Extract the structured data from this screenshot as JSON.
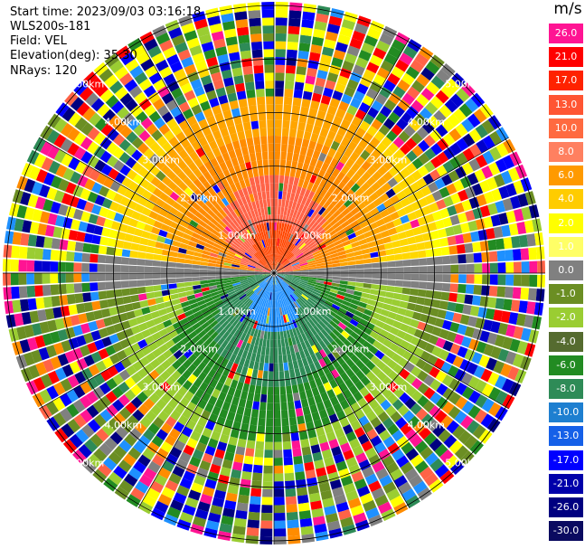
{
  "header": {
    "start_time": "Start time: 2023/09/03 03:16:18",
    "instrument": "WLS200s-181",
    "field": "Field: VEL",
    "elevation": "Elevation(deg): 35.30",
    "nrays": "NRays: 120"
  },
  "chart_data": {
    "type": "heatmap",
    "projection": "polar-ppi",
    "unit": "m/s",
    "rays": 120,
    "range_rings_km": [
      1.0,
      2.0,
      3.0,
      4.0,
      5.0
    ],
    "range_ring_labels": [
      "1.00km",
      "2.00km",
      "3.00km",
      "4.00km",
      "5.00km"
    ],
    "colorbar": {
      "ticks": [
        "26.0",
        "21.0",
        "17.0",
        "13.0",
        "10.0",
        "8.0",
        "6.0",
        "4.0",
        "2.0",
        "1.0",
        "0.0",
        "-1.0",
        "-2.0",
        "-4.0",
        "-6.0",
        "-8.0",
        "-10.0",
        "-13.0",
        "-17.0",
        "-21.0",
        "-26.0",
        "-30.0"
      ],
      "colors": [
        "#ff1493",
        "#ff0000",
        "#ff2200",
        "#ff5533",
        "#ff6a40",
        "#ff8060",
        "#ff9a00",
        "#ffcc00",
        "#ffff00",
        "#ffff66",
        "#808080",
        "#6b8e23",
        "#9acd32",
        "#556b2f",
        "#228b22",
        "#2e8b57",
        "#1e7fd0",
        "#1560e8",
        "#0000ff",
        "#0000aa",
        "#000080",
        "#0a0a60"
      ]
    },
    "sectors": [
      {
        "from_deg": 0,
        "to_deg": 180,
        "dominant": "positive (warm: red/orange/yellow)"
      },
      {
        "from_deg": 180,
        "to_deg": 360,
        "dominant": "negative (cool: green/blue)"
      }
    ]
  }
}
